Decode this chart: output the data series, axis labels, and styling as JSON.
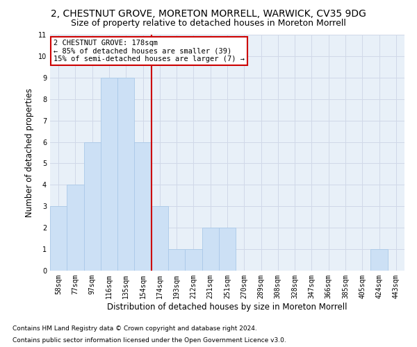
{
  "title": "2, CHESTNUT GROVE, MORETON MORRELL, WARWICK, CV35 9DG",
  "subtitle": "Size of property relative to detached houses in Moreton Morrell",
  "xlabel": "Distribution of detached houses by size in Moreton Morrell",
  "ylabel": "Number of detached properties",
  "categories": [
    "58sqm",
    "77sqm",
    "97sqm",
    "116sqm",
    "135sqm",
    "154sqm",
    "174sqm",
    "193sqm",
    "212sqm",
    "231sqm",
    "251sqm",
    "270sqm",
    "289sqm",
    "308sqm",
    "328sqm",
    "347sqm",
    "366sqm",
    "385sqm",
    "405sqm",
    "424sqm",
    "443sqm"
  ],
  "values": [
    3,
    4,
    6,
    9,
    9,
    6,
    3,
    1,
    1,
    2,
    2,
    0,
    0,
    0,
    0,
    0,
    0,
    0,
    0,
    1,
    0
  ],
  "bar_color": "#cce0f5",
  "bar_edgecolor": "#aac8e8",
  "red_line_index": 6,
  "red_line_color": "#cc0000",
  "annotation_line1": "2 CHESTNUT GROVE: 178sqm",
  "annotation_line2": "← 85% of detached houses are smaller (39)",
  "annotation_line3": "15% of semi-detached houses are larger (7) →",
  "annotation_box_color": "#ffffff",
  "annotation_box_edgecolor": "#cc0000",
  "ylim": [
    0,
    11
  ],
  "yticks": [
    0,
    1,
    2,
    3,
    4,
    5,
    6,
    7,
    8,
    9,
    10,
    11
  ],
  "grid_color": "#d0d8e8",
  "background_color": "#e8f0f8",
  "footer_line1": "Contains HM Land Registry data © Crown copyright and database right 2024.",
  "footer_line2": "Contains public sector information licensed under the Open Government Licence v3.0.",
  "title_fontsize": 10,
  "subtitle_fontsize": 9,
  "xlabel_fontsize": 8.5,
  "ylabel_fontsize": 8.5,
  "tick_fontsize": 7,
  "annotation_fontsize": 7.5,
  "footer_fontsize": 6.5
}
